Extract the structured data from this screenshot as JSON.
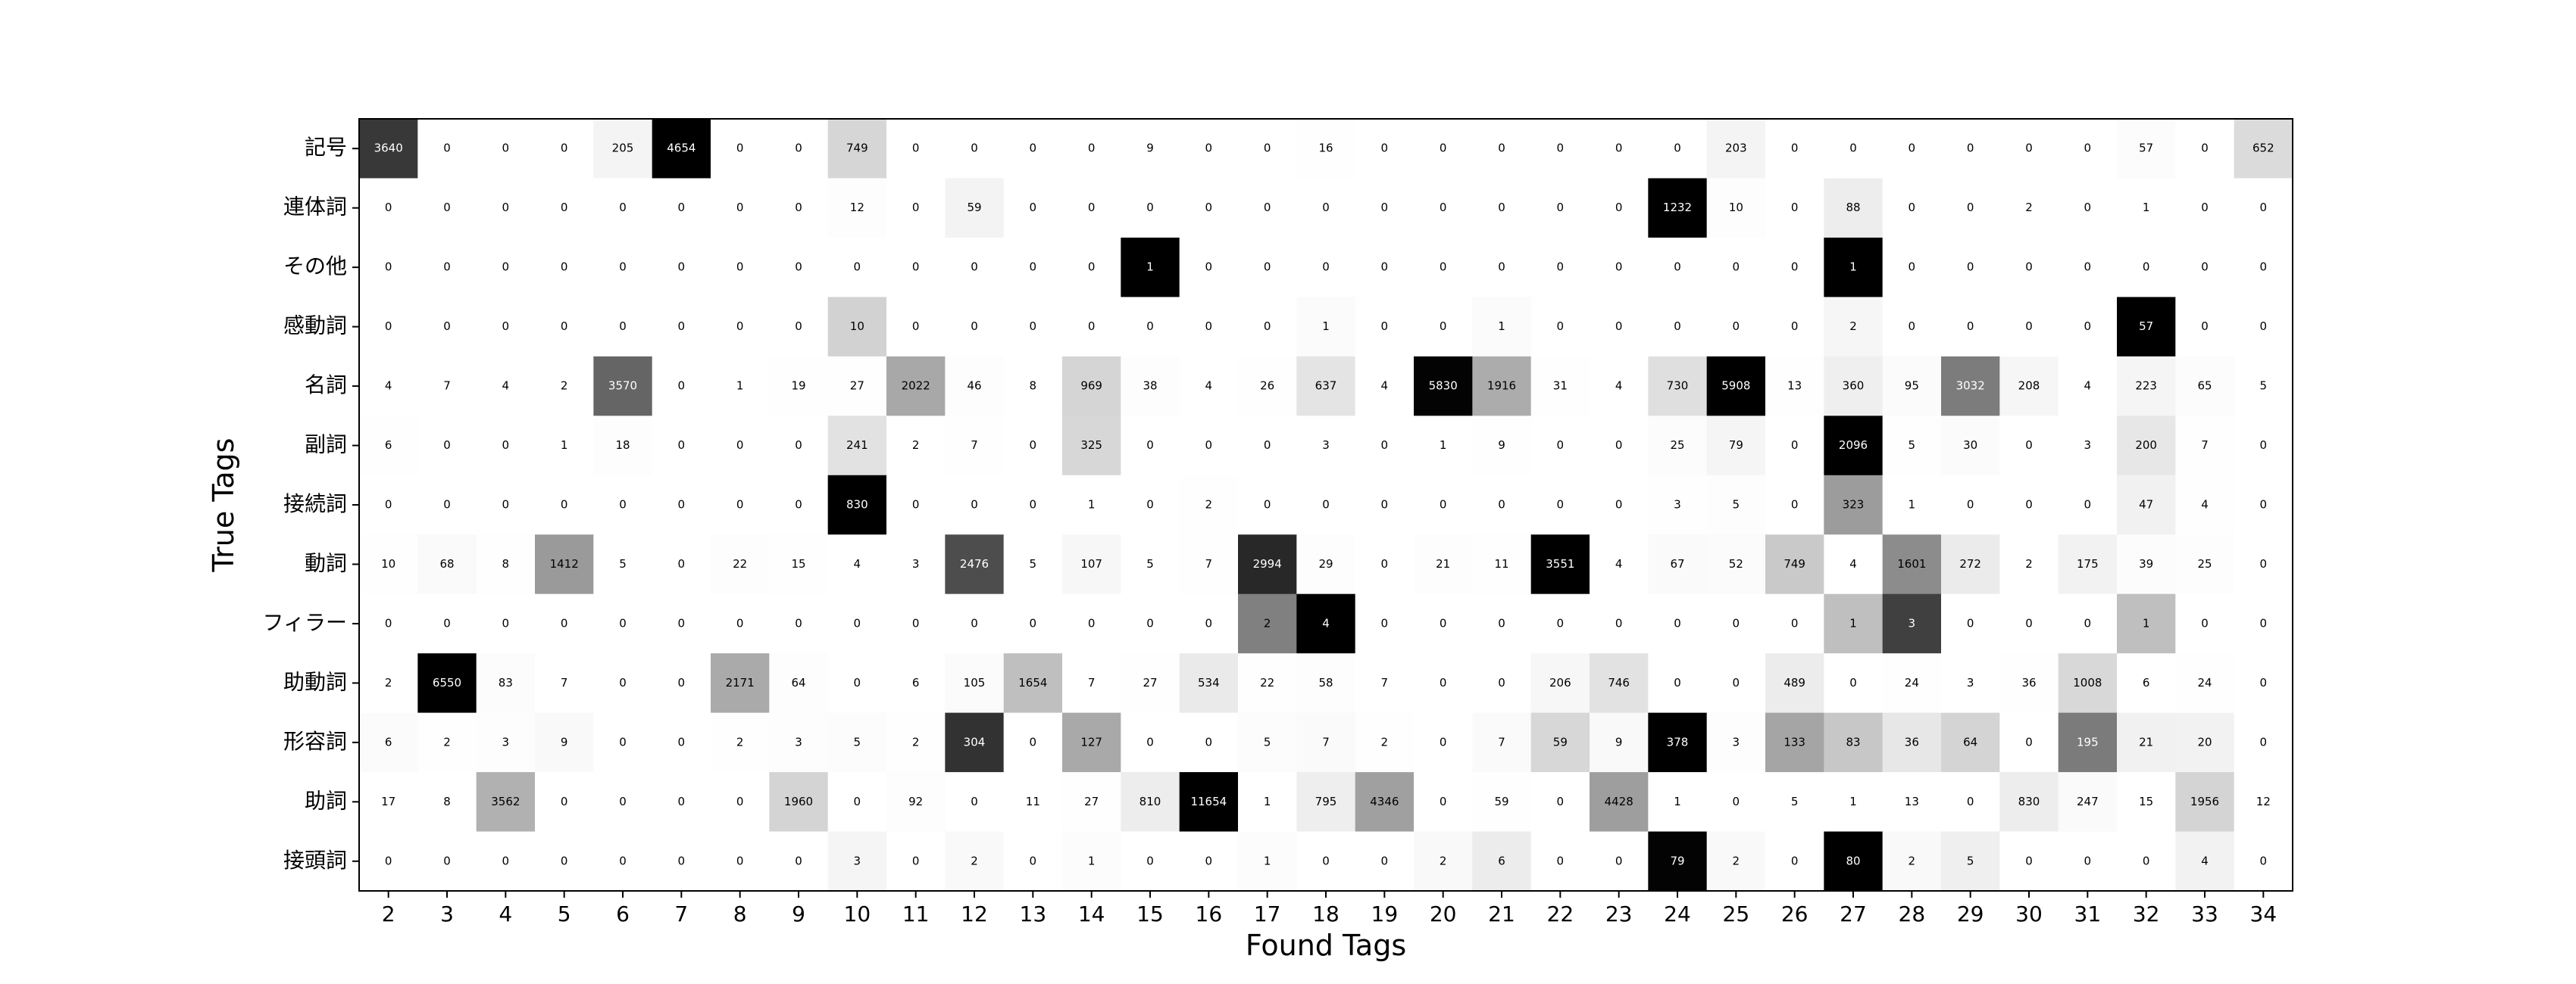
{
  "chart_data": {
    "type": "heatmap",
    "title": "",
    "xlabel": "Found Tags",
    "ylabel": "True Tags",
    "x_labels": [
      "2",
      "3",
      "4",
      "5",
      "6",
      "7",
      "8",
      "9",
      "10",
      "11",
      "12",
      "13",
      "14",
      "15",
      "16",
      "17",
      "18",
      "19",
      "20",
      "21",
      "22",
      "23",
      "24",
      "25",
      "26",
      "27",
      "28",
      "29",
      "30",
      "31",
      "32",
      "33",
      "34"
    ],
    "y_labels": [
      "記号",
      "連体詞",
      "その他",
      "感動詞",
      "名詞",
      "副詞",
      "接続詞",
      "動詞",
      "フィラー",
      "助動詞",
      "形容詞",
      "助詞",
      "接頭詞"
    ],
    "colormap": "gray_r",
    "grid": false,
    "values": [
      [
        3640,
        0,
        0,
        0,
        205,
        4654,
        0,
        0,
        749,
        0,
        0,
        0,
        0,
        9,
        0,
        0,
        16,
        0,
        0,
        0,
        0,
        0,
        0,
        203,
        0,
        0,
        0,
        0,
        0,
        0,
        57,
        0,
        652
      ],
      [
        0,
        0,
        0,
        0,
        0,
        0,
        0,
        0,
        12,
        0,
        59,
        0,
        0,
        0,
        0,
        0,
        0,
        0,
        0,
        0,
        0,
        0,
        1232,
        10,
        0,
        88,
        0,
        0,
        2,
        0,
        1,
        0,
        0
      ],
      [
        0,
        0,
        0,
        0,
        0,
        0,
        0,
        0,
        0,
        0,
        0,
        0,
        0,
        1,
        0,
        0,
        0,
        0,
        0,
        0,
        0,
        0,
        0,
        0,
        0,
        1,
        0,
        0,
        0,
        0,
        0,
        0,
        0
      ],
      [
        0,
        0,
        0,
        0,
        0,
        0,
        0,
        0,
        10,
        0,
        0,
        0,
        0,
        0,
        0,
        0,
        1,
        0,
        0,
        1,
        0,
        0,
        0,
        0,
        0,
        2,
        0,
        0,
        0,
        0,
        57,
        0,
        0
      ],
      [
        4,
        7,
        4,
        2,
        3570,
        0,
        1,
        19,
        27,
        2022,
        46,
        8,
        969,
        38,
        4,
        26,
        637,
        4,
        5830,
        1916,
        31,
        4,
        730,
        5908,
        13,
        360,
        95,
        3032,
        208,
        4,
        223,
        65,
        5
      ],
      [
        6,
        0,
        0,
        1,
        18,
        0,
        0,
        0,
        241,
        2,
        7,
        0,
        325,
        0,
        0,
        0,
        3,
        0,
        1,
        9,
        0,
        0,
        25,
        79,
        0,
        2096,
        5,
        30,
        0,
        3,
        200,
        7,
        0
      ],
      [
        0,
        0,
        0,
        0,
        0,
        0,
        0,
        0,
        830,
        0,
        0,
        0,
        1,
        0,
        2,
        0,
        0,
        0,
        0,
        0,
        0,
        0,
        3,
        5,
        0,
        323,
        1,
        0,
        0,
        0,
        47,
        4,
        0
      ],
      [
        10,
        68,
        8,
        1412,
        5,
        0,
        22,
        15,
        4,
        3,
        2476,
        5,
        107,
        5,
        7,
        2994,
        29,
        0,
        21,
        11,
        3551,
        4,
        67,
        52,
        749,
        4,
        1601,
        272,
        2,
        175,
        39,
        25,
        0
      ],
      [
        0,
        0,
        0,
        0,
        0,
        0,
        0,
        0,
        0,
        0,
        0,
        0,
        0,
        0,
        0,
        2,
        4,
        0,
        0,
        0,
        0,
        0,
        0,
        0,
        0,
        1,
        3,
        0,
        0,
        0,
        1,
        0,
        0
      ],
      [
        2,
        6550,
        83,
        7,
        0,
        0,
        2171,
        64,
        0,
        6,
        105,
        1654,
        7,
        27,
        534,
        22,
        58,
        7,
        0,
        0,
        206,
        746,
        0,
        0,
        489,
        0,
        24,
        3,
        36,
        1008,
        6,
        24,
        0
      ],
      [
        6,
        2,
        3,
        9,
        0,
        0,
        2,
        3,
        5,
        2,
        304,
        0,
        127,
        0,
        0,
        5,
        7,
        2,
        0,
        7,
        59,
        9,
        378,
        3,
        133,
        83,
        36,
        64,
        0,
        195,
        21,
        20,
        0
      ],
      [
        17,
        8,
        3562,
        0,
        0,
        0,
        0,
        1960,
        0,
        92,
        0,
        11,
        27,
        810,
        11654,
        1,
        795,
        4346,
        0,
        59,
        0,
        4428,
        1,
        0,
        5,
        1,
        13,
        0,
        830,
        247,
        15,
        1956,
        12
      ],
      [
        0,
        0,
        0,
        0,
        0,
        0,
        0,
        0,
        3,
        0,
        2,
        0,
        1,
        0,
        0,
        1,
        0,
        0,
        2,
        6,
        0,
        0,
        79,
        2,
        0,
        80,
        2,
        5,
        0,
        0,
        0,
        4,
        0
      ]
    ]
  }
}
